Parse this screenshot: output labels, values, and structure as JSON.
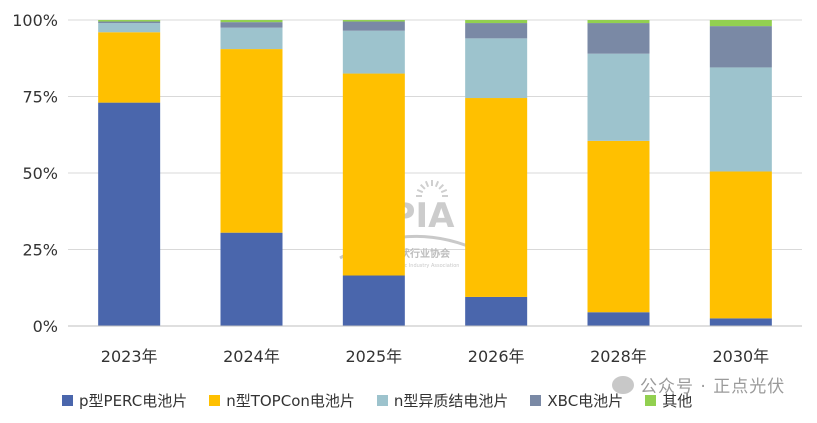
{
  "chart_data": {
    "type": "bar",
    "stacked": true,
    "percent": true,
    "categories": [
      "2023年",
      "2024年",
      "2025年",
      "2026年",
      "2028年",
      "2030年"
    ],
    "series": [
      {
        "name": "p型PERC电池片",
        "color": "#4A66AC",
        "values": [
          73,
          30.5,
          16.5,
          9.5,
          4.5,
          2.5
        ]
      },
      {
        "name": "n型TOPCon电池片",
        "color": "#FFC000",
        "values": [
          23,
          60,
          66,
          65,
          56,
          48
        ]
      },
      {
        "name": "n型异质结电池片",
        "color": "#9DC3CD",
        "values": [
          3,
          7,
          14,
          19.5,
          28.5,
          34
        ]
      },
      {
        "name": "XBC电池片",
        "color": "#7A89A5",
        "values": [
          0.5,
          1.8,
          3,
          5,
          10,
          13.5
        ]
      },
      {
        "name": "其他",
        "color": "#92D050",
        "values": [
          0.5,
          0.7,
          0.5,
          1,
          1,
          2
        ]
      }
    ],
    "y_ticks": [
      "0%",
      "25%",
      "50%",
      "75%",
      "100%"
    ],
    "ylim": [
      0,
      100
    ],
    "grid": true,
    "legend_position": "bottom"
  },
  "watermark": {
    "logo": "CPIA",
    "subtitle": "中国光伏行业协会",
    "subtitle_en": "China Photovoltaic Industry Association"
  },
  "source": {
    "text": "公众号 · 正点光伏"
  }
}
